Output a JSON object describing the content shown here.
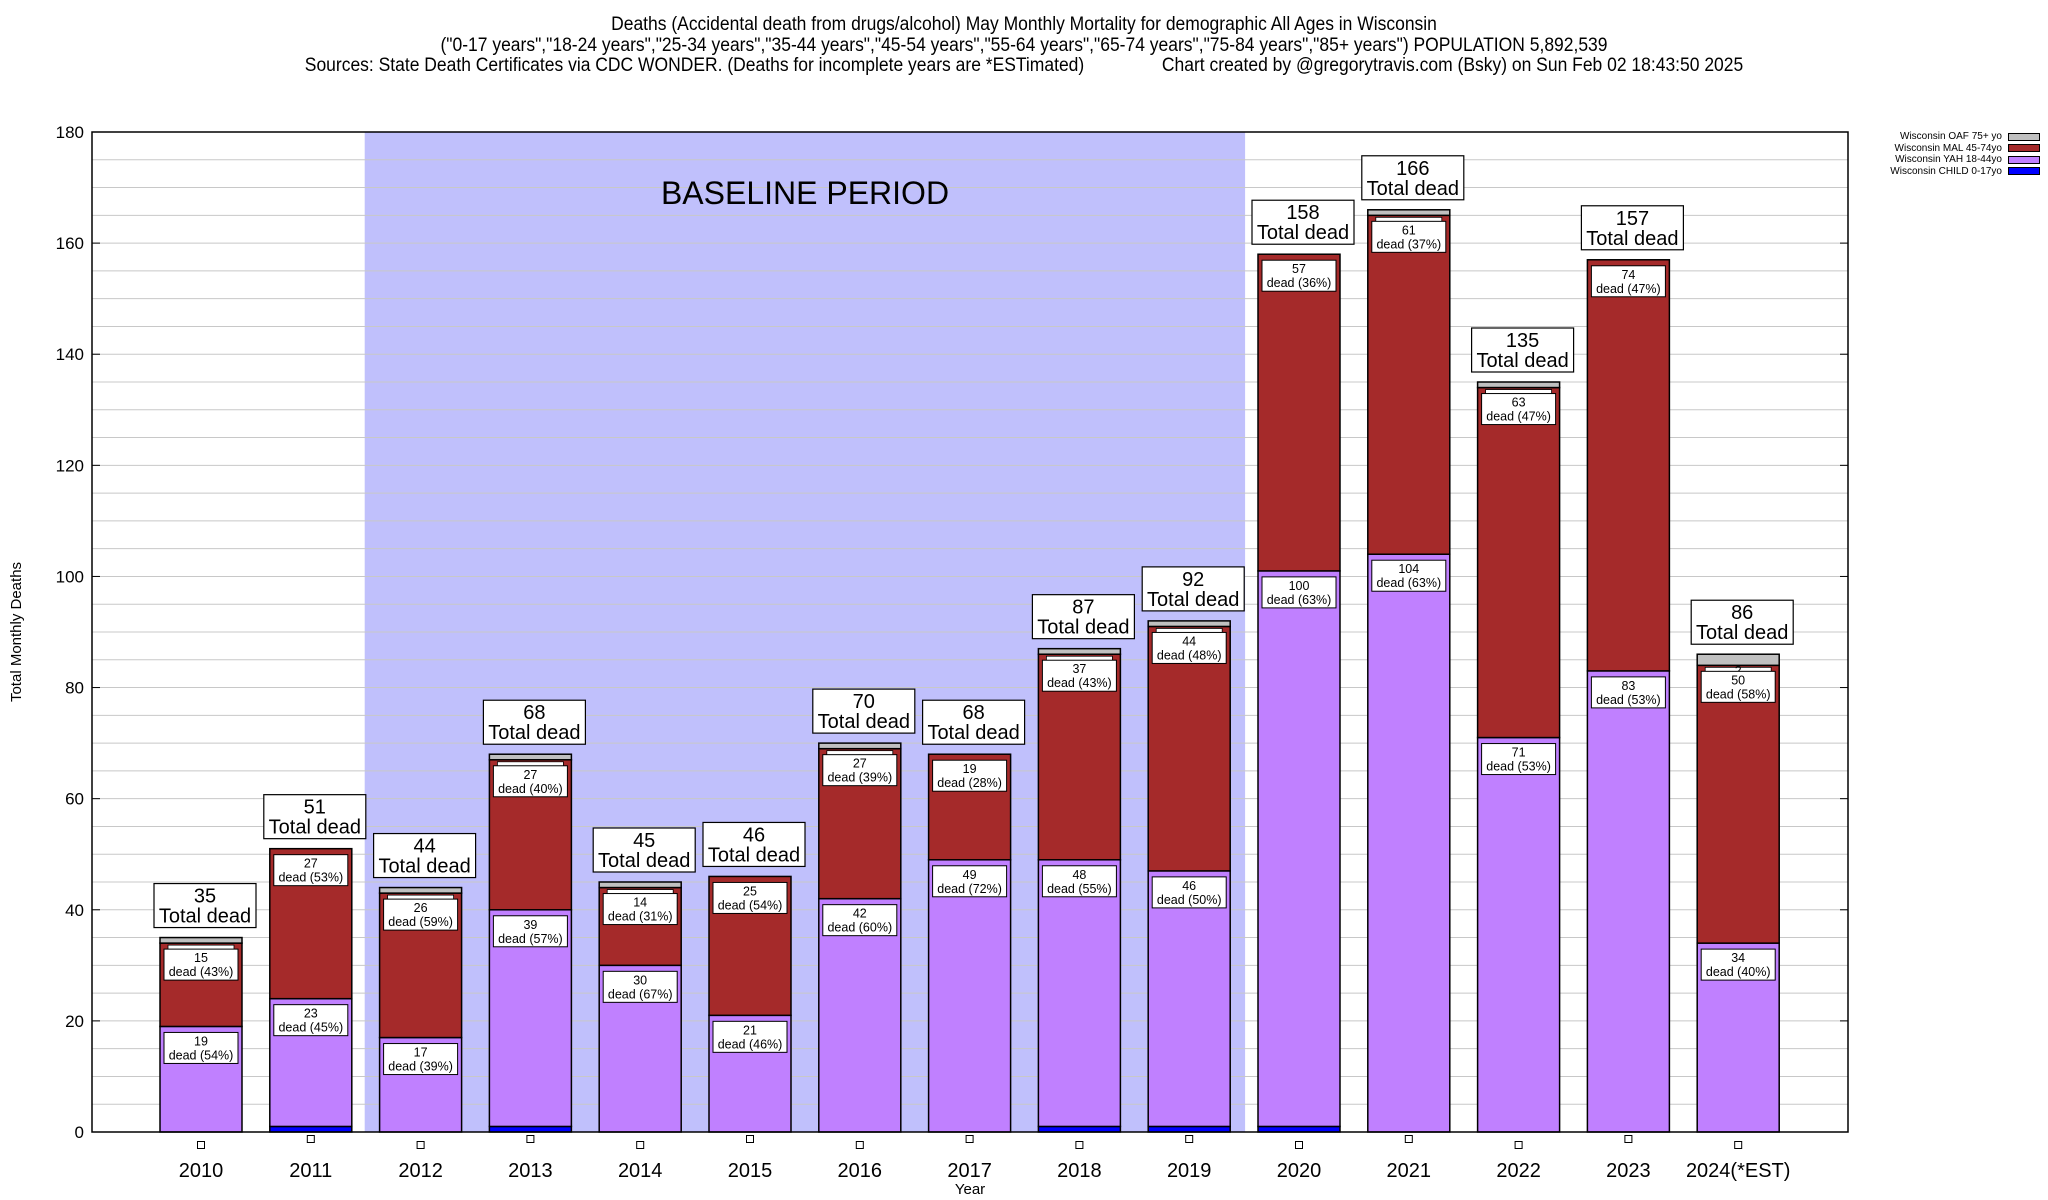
{
  "header": {
    "title": "Deaths (Accidental death from drugs/alcohol) May Monthly Mortality for demographic All Ages in Wisconsin",
    "subtitle": "(\"0-17 years\",\"18-24 years\",\"25-34 years\",\"35-44 years\",\"45-54 years\",\"55-64 years\",\"65-74 years\",\"75-84 years\",\"85+ years\") POPULATION 5,892,539",
    "sources": "Sources: State Death Certificates via CDC WONDER. (Deaths for incomplete years are *ESTimated)                Chart created by @gregorytravis.com (Bsky) on Sun Feb 02 18:43:50 2025"
  },
  "chart_data": {
    "type": "bar",
    "stacked": true,
    "title": "Deaths (Accidental death from drugs/alcohol) May Monthly Mortality for demographic All Ages in Wisconsin",
    "xlabel": "Year",
    "ylabel": "Total Monthly Deaths",
    "ylim": [
      0,
      180
    ],
    "yticks": [
      0,
      20,
      40,
      60,
      80,
      100,
      120,
      140,
      160,
      180
    ],
    "grid": true,
    "legend_position": "top-right (outside plot)",
    "categories": [
      "2010",
      "2011",
      "2012",
      "2013",
      "2014",
      "2015",
      "2016",
      "2017",
      "2018",
      "2019",
      "2020",
      "2021",
      "2022",
      "2023",
      "2024(*EST)"
    ],
    "series": [
      {
        "name": "Wisconsin CHILD 0-17yo",
        "color": "#0000ff",
        "values": [
          0,
          1,
          0,
          1,
          0,
          0,
          0,
          0,
          1,
          1,
          1,
          0,
          0,
          0,
          0
        ]
      },
      {
        "name": "Wisconsin YAH 18-44yo",
        "color": "#c080ff",
        "values": [
          19,
          23,
          17,
          39,
          30,
          21,
          42,
          49,
          48,
          46,
          100,
          104,
          71,
          83,
          34
        ]
      },
      {
        "name": "Wisconsin MAL 45-74yo",
        "color": "#a52a2a",
        "values": [
          15,
          27,
          26,
          27,
          14,
          25,
          27,
          19,
          37,
          44,
          57,
          61,
          63,
          74,
          50
        ]
      },
      {
        "name": "Wisconsin OAF 75+ yo",
        "color": "#c0c0c0",
        "values": [
          1,
          0,
          1,
          1,
          1,
          0,
          1,
          0,
          1,
          1,
          0,
          1,
          1,
          0,
          2
        ]
      }
    ],
    "totals": [
      35,
      51,
      44,
      68,
      45,
      46,
      70,
      68,
      87,
      92,
      158,
      166,
      135,
      157,
      86
    ],
    "yah_labels": [
      "19\ndead (54%)",
      "23\ndead (45%)",
      "17\ndead (39%)",
      "39\ndead (57%)",
      "30\ndead (67%)",
      "21\ndead (46%)",
      "42\ndead (60%)",
      "49\ndead (72%)",
      "48\ndead (55%)",
      "46\ndead (50%)",
      "100\ndead (63%)",
      "104\ndead (63%)",
      "71\ndead (53%)",
      "83\ndead (53%)",
      "34\ndead (40%)"
    ],
    "mal_labels": [
      "15\ndead (43%)",
      "27\ndead (53%)",
      "26\ndead (59%)",
      "27\ndead (40%)",
      "14\ndead (31%)",
      "25\ndead (54%)",
      "27\ndead (39%)",
      "19\ndead (28%)",
      "37\ndead (43%)",
      "44\ndead (48%)",
      "57\ndead (36%)",
      "61\ndead (37%)",
      "63\ndead (47%)",
      "74\ndead (47%)",
      "50\ndead (58%)"
    ],
    "total_label_suffix": "Total dead",
    "annotation": {
      "text": "BASELINE PERIOD",
      "from_category": "2012",
      "to_category": "2019",
      "color": "#c0c0fc"
    }
  },
  "legend": {
    "items": [
      {
        "label": "Wisconsin OAF 75+ yo",
        "color": "#c0c0c0"
      },
      {
        "label": "Wisconsin MAL 45-74yo",
        "color": "#a52a2a"
      },
      {
        "label": "Wisconsin YAH 18-44yo",
        "color": "#c080ff"
      },
      {
        "label": "Wisconsin CHILD 0-17yo",
        "color": "#0000ff"
      }
    ]
  }
}
